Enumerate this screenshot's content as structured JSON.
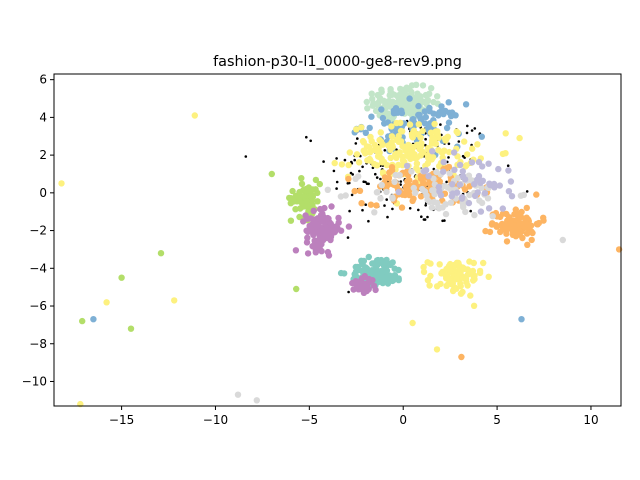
{
  "chart_data": {
    "type": "scatter",
    "title": "fashion-p30-l1_0000-ge8-rev9.png",
    "xlabel": "",
    "ylabel": "",
    "xlim": [
      -18.6,
      11.6
    ],
    "ylim": [
      -11.3,
      6.3
    ],
    "xticks": [
      -15,
      -10,
      -5,
      0,
      5,
      10
    ],
    "yticks": [
      -10,
      -8,
      -6,
      -4,
      -2,
      0,
      2,
      4,
      6
    ],
    "grid": false,
    "legend": "none",
    "series": [
      {
        "color": "#000000",
        "marker_size": 2,
        "clusters": [
          {
            "cx": 0.5,
            "cy": 1.2,
            "sx": 4.0,
            "sy": 2.8,
            "n": 220
          }
        ],
        "points": []
      },
      {
        "color": "#c2e5c8",
        "marker_size": 3,
        "clusters": [
          {
            "cx": 0.0,
            "cy": 4.8,
            "sx": 1.4,
            "sy": 0.7,
            "n": 150
          }
        ],
        "points": []
      },
      {
        "color": "#7eb0d5",
        "marker_size": 3,
        "clusters": [
          {
            "cx": 0.5,
            "cy": 3.6,
            "sx": 2.4,
            "sy": 1.0,
            "n": 90
          }
        ],
        "points": [
          [
            -16.5,
            -6.7
          ],
          [
            6.3,
            -6.7
          ]
        ]
      },
      {
        "color": "#fdf17f",
        "marker_size": 3,
        "clusters": [
          {
            "cx": 0.5,
            "cy": 2.2,
            "sx": 3.0,
            "sy": 1.3,
            "n": 180
          },
          {
            "cx": 2.8,
            "cy": -4.5,
            "sx": 1.3,
            "sy": 0.9,
            "n": 80
          }
        ],
        "points": [
          [
            -18.2,
            0.5
          ],
          [
            -11.1,
            4.1
          ],
          [
            -15.8,
            -5.8
          ],
          [
            -12.2,
            -5.7
          ],
          [
            -17.2,
            -11.2
          ],
          [
            1.8,
            -8.3
          ],
          [
            0.5,
            -6.9
          ],
          [
            6.2,
            2.9
          ]
        ]
      },
      {
        "color": "#fdb462",
        "marker_size": 3,
        "clusters": [
          {
            "cx": 1.0,
            "cy": 0.3,
            "sx": 2.8,
            "sy": 0.8,
            "n": 110
          },
          {
            "cx": 6.0,
            "cy": -1.6,
            "sx": 1.2,
            "sy": 0.8,
            "n": 90
          }
        ],
        "points": [
          [
            11.5,
            -3.0
          ],
          [
            3.1,
            -8.7
          ]
        ]
      },
      {
        "color": "#d9d9d9",
        "marker_size": 3,
        "clusters": [
          {
            "cx": 2.0,
            "cy": 0.0,
            "sx": 3.5,
            "sy": 1.2,
            "n": 80
          }
        ],
        "points": [
          [
            -8.8,
            -10.7
          ],
          [
            -7.8,
            -11.0
          ],
          [
            8.5,
            -2.5
          ]
        ]
      },
      {
        "color": "#bebada",
        "marker_size": 3,
        "clusters": [
          {
            "cx": 3.5,
            "cy": 0.5,
            "sx": 3.0,
            "sy": 1.5,
            "n": 50
          }
        ],
        "points": []
      },
      {
        "color": "#80cbc0",
        "marker_size": 3,
        "clusters": [
          {
            "cx": -1.4,
            "cy": -4.2,
            "sx": 1.3,
            "sy": 0.7,
            "n": 110
          }
        ],
        "points": []
      },
      {
        "color": "#b3de69",
        "marker_size": 3,
        "clusters": [
          {
            "cx": -5.2,
            "cy": -0.3,
            "sx": 0.7,
            "sy": 0.9,
            "n": 70
          }
        ],
        "points": [
          [
            -17.1,
            -6.8
          ],
          [
            -15.0,
            -4.5
          ],
          [
            -14.5,
            -7.2
          ],
          [
            -12.9,
            -3.2
          ],
          [
            -5.7,
            -5.1
          ],
          [
            -7.0,
            1.0
          ]
        ]
      },
      {
        "color": "#bc80bd",
        "marker_size": 3,
        "clusters": [
          {
            "cx": -4.3,
            "cy": -2.0,
            "sx": 0.8,
            "sy": 0.9,
            "n": 120
          },
          {
            "cx": -2.1,
            "cy": -4.9,
            "sx": 0.5,
            "sy": 0.35,
            "n": 35
          }
        ],
        "points": []
      }
    ]
  }
}
